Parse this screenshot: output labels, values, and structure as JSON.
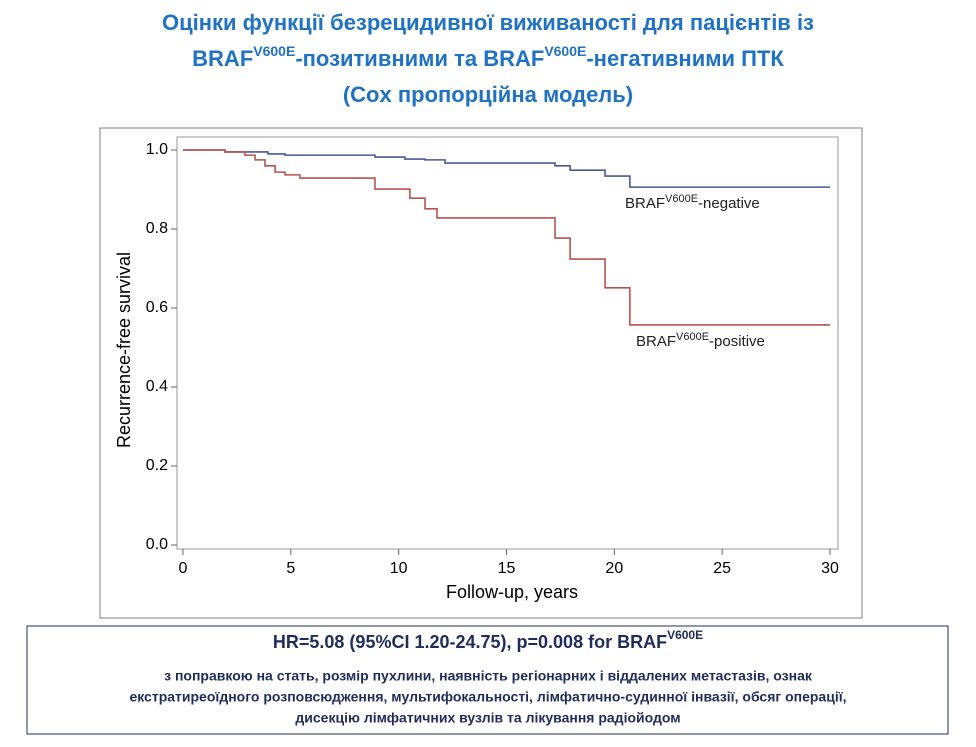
{
  "chart_data": {
    "type": "step",
    "title": [
      "Оцінки функції безрецидивної виживаності для пацієнтів із",
      "BRAF",
      "V600E",
      "-позитивними та BRAF",
      "V600E",
      "-негативними ПТК",
      "(Cox пропорційна модель)"
    ],
    "xlabel": "Follow-up,  years",
    "ylabel": "Recurrence-free survival",
    "xlim": [
      0,
      30
    ],
    "ylim": [
      0,
      1
    ],
    "xticks": [
      0,
      5,
      10,
      15,
      20,
      25,
      30
    ],
    "yticks": [
      {
        "value": 0,
        "label": "0.0"
      },
      {
        "value": 0.2,
        "label": "0.2"
      },
      {
        "value": 0.4,
        "label": "0.4"
      },
      {
        "value": 0.6,
        "label": "0.6"
      },
      {
        "value": 0.8,
        "label": "0.8"
      },
      {
        "value": 1,
        "label": "1.0"
      }
    ],
    "series": [
      {
        "name": "BRAFV600E-negative",
        "color": "#4b5898",
        "x": [
          0,
          1.95,
          3.94,
          4.73,
          8.9,
          10.29,
          11.22,
          12.15,
          17.25,
          17.95,
          19.57,
          20.72,
          30
        ],
        "values": [
          1,
          0.995,
          0.99,
          0.987,
          0.982,
          0.977,
          0.975,
          0.967,
          0.96,
          0.949,
          0.934,
          0.906,
          0.906
        ]
      },
      {
        "name": "BRAFV600E-positive",
        "color": "#b9534f",
        "x": [
          0,
          1.95,
          2.87,
          3.34,
          3.8,
          4.27,
          4.73,
          5.42,
          8.9,
          10.52,
          11.22,
          11.78,
          17.25,
          17.95,
          19.57,
          20.72,
          30
        ],
        "values": [
          1,
          0.995,
          0.987,
          0.975,
          0.96,
          0.944,
          0.937,
          0.929,
          0.901,
          0.878,
          0.851,
          0.828,
          0.777,
          0.724,
          0.651,
          0.557,
          0.557
        ]
      }
    ],
    "annotation": {
      "headline": [
        "HR=5.08 (95%CI 1.20-24.75), p=0.008 for BRAF",
        "V600E"
      ],
      "lines": [
        "з поправкою на стать, розмір пухлини, наявність регіонарних і віддалених метастазів, ознак",
        "екстратиреоїдного розповсюдження, мультифокальності, лімфатично-судинної інвазії, обсяг операції,",
        "дисекцію лімфатичних вузлів та лікування радіойодом"
      ]
    }
  }
}
